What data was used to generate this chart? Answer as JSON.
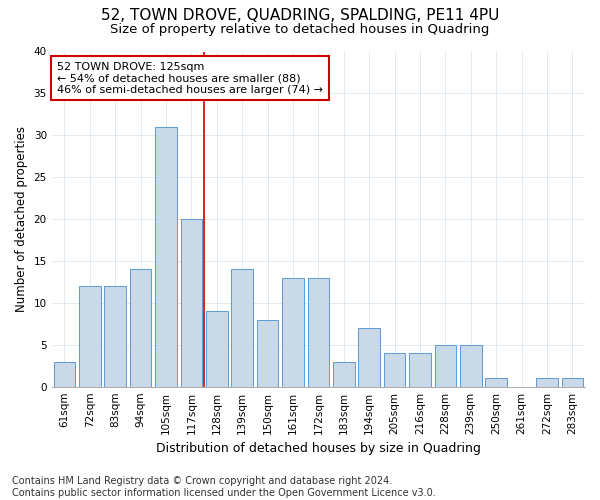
{
  "title": "52, TOWN DROVE, QUADRING, SPALDING, PE11 4PU",
  "subtitle": "Size of property relative to detached houses in Quadring",
  "xlabel": "Distribution of detached houses by size in Quadring",
  "ylabel": "Number of detached properties",
  "categories": [
    "61sqm",
    "72sqm",
    "83sqm",
    "94sqm",
    "105sqm",
    "117sqm",
    "128sqm",
    "139sqm",
    "150sqm",
    "161sqm",
    "172sqm",
    "183sqm",
    "194sqm",
    "205sqm",
    "216sqm",
    "228sqm",
    "239sqm",
    "250sqm",
    "261sqm",
    "272sqm",
    "283sqm"
  ],
  "values": [
    3,
    12,
    12,
    14,
    31,
    20,
    9,
    14,
    8,
    13,
    13,
    3,
    7,
    4,
    4,
    5,
    5,
    1,
    0,
    1,
    1
  ],
  "bar_color": "#c9d9e8",
  "bar_edge_color": "#5b9bd5",
  "red_line_index": 5.5,
  "annotation_line1": "52 TOWN DROVE: 125sqm",
  "annotation_line2": "← 54% of detached houses are smaller (88)",
  "annotation_line3": "46% of semi-detached houses are larger (74) →",
  "annotation_box_color": "#ffffff",
  "annotation_box_edge": "#cc0000",
  "ylim": [
    0,
    40
  ],
  "yticks": [
    0,
    5,
    10,
    15,
    20,
    25,
    30,
    35,
    40
  ],
  "footer": "Contains HM Land Registry data © Crown copyright and database right 2024.\nContains public sector information licensed under the Open Government Licence v3.0.",
  "title_fontsize": 11,
  "subtitle_fontsize": 9.5,
  "xlabel_fontsize": 9,
  "ylabel_fontsize": 8.5,
  "tick_fontsize": 7.5,
  "annotation_fontsize": 8,
  "footer_fontsize": 7,
  "background_color": "#ffffff",
  "grid_color": "#dce6f0"
}
